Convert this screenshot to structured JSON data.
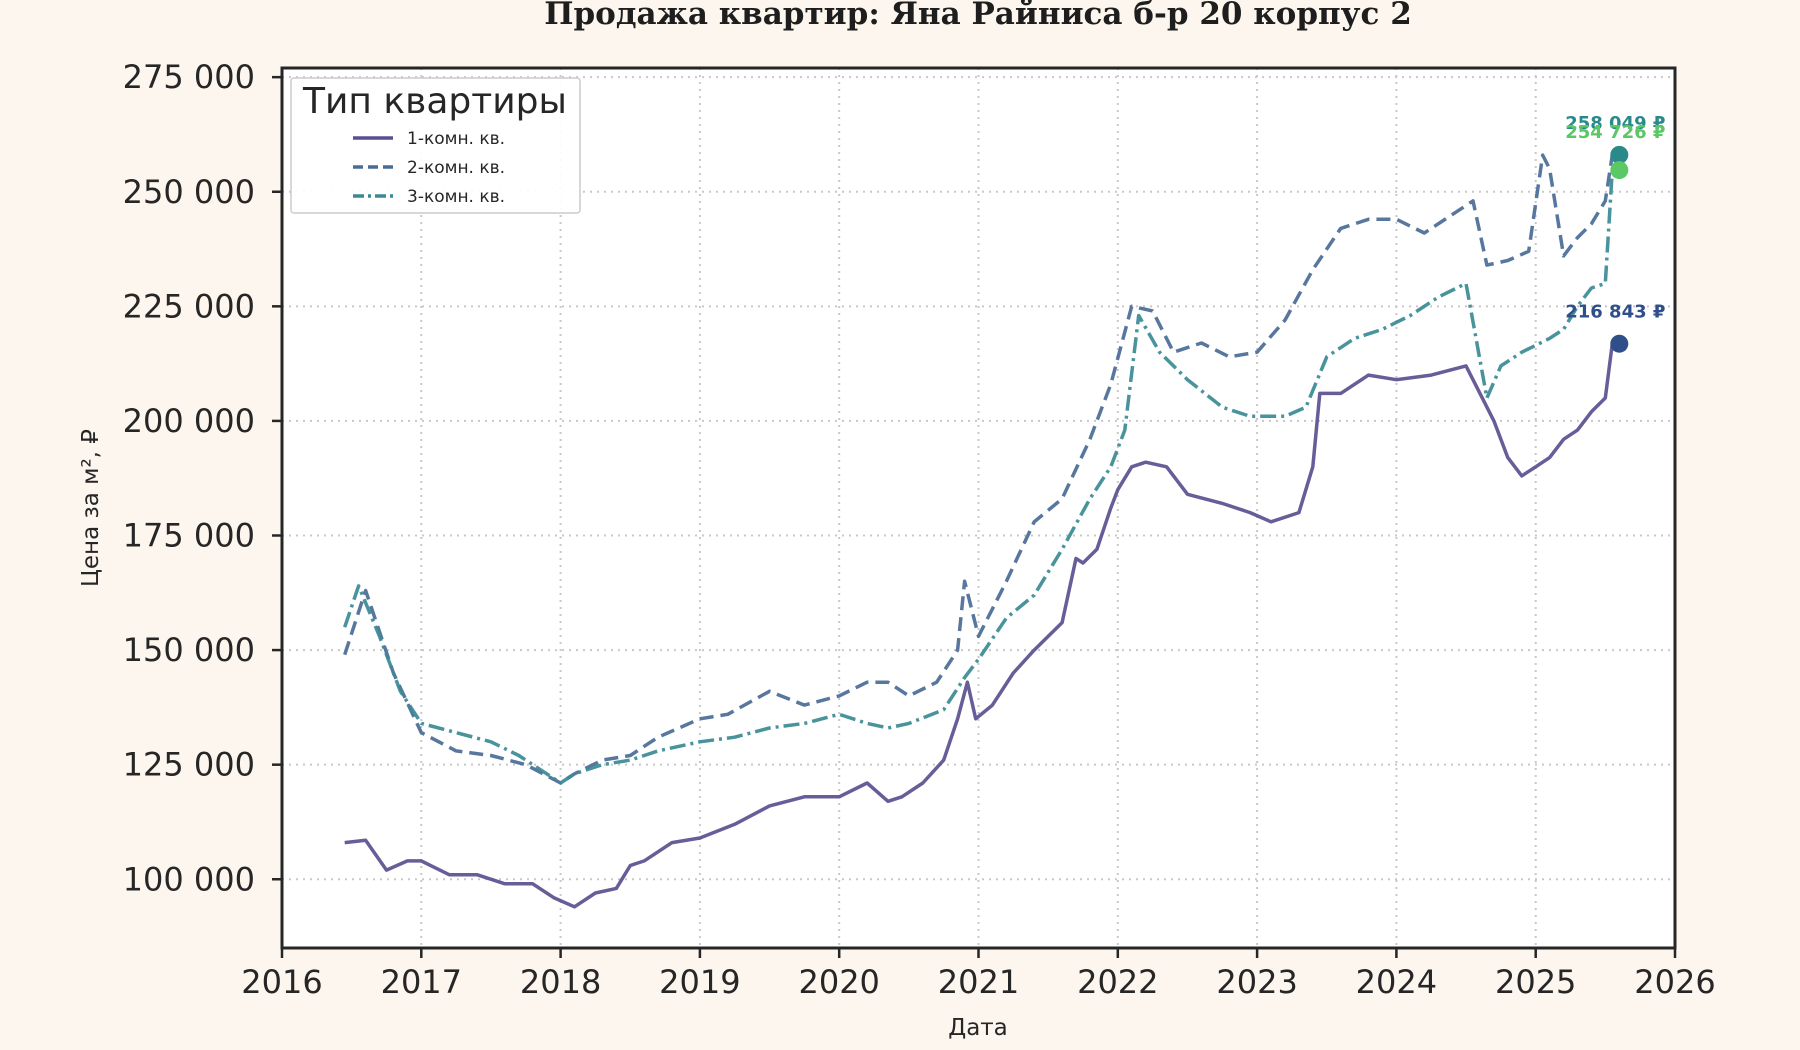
{
  "chart_data": {
    "type": "line",
    "title": "Продажа квартир: Яна Райниса б-р 20 корпус 2",
    "xlabel": "Дата",
    "ylabel": "Цена за м², ₽",
    "xlim": [
      2016,
      2026
    ],
    "ylim": [
      85000,
      277000
    ],
    "x_ticks": [
      "2016",
      "2017",
      "2018",
      "2019",
      "2020",
      "2021",
      "2022",
      "2023",
      "2024",
      "2025",
      "2026"
    ],
    "y_ticks": [
      "100 000",
      "125 000",
      "150 000",
      "175 000",
      "200 000",
      "225 000",
      "250 000",
      "275 000"
    ],
    "grid": true,
    "legend": {
      "title": "Тип квартиры",
      "placement": "top-left"
    },
    "series": [
      {
        "name": "1-комн. кв.",
        "color": "#5b4f8f",
        "style": "solid",
        "x": [
          2016.45,
          2016.6,
          2016.75,
          2016.9,
          2017.0,
          2017.2,
          2017.4,
          2017.6,
          2017.8,
          2017.95,
          2018.1,
          2018.25,
          2018.4,
          2018.5,
          2018.6,
          2018.8,
          2019.0,
          2019.25,
          2019.5,
          2019.75,
          2020.0,
          2020.2,
          2020.35,
          2020.45,
          2020.6,
          2020.75,
          2020.85,
          2020.92,
          2020.98,
          2021.1,
          2021.25,
          2021.4,
          2021.6,
          2021.7,
          2021.75,
          2021.85,
          2021.95,
          2022.0,
          2022.1,
          2022.2,
          2022.35,
          2022.5,
          2022.75,
          2022.95,
          2023.1,
          2023.3,
          2023.4,
          2023.45,
          2023.6,
          2023.8,
          2024.0,
          2024.25,
          2024.5,
          2024.7,
          2024.8,
          2024.9,
          2025.0,
          2025.1,
          2025.2,
          2025.3,
          2025.4,
          2025.5,
          2025.55
        ],
        "y": [
          108000,
          108500,
          102000,
          104000,
          104000,
          101000,
          101000,
          99000,
          99000,
          96000,
          94000,
          97000,
          98000,
          103000,
          104000,
          108000,
          109000,
          112000,
          116000,
          118000,
          118000,
          121000,
          117000,
          118000,
          121000,
          126000,
          135000,
          143000,
          135000,
          138000,
          145000,
          150000,
          156000,
          170000,
          169000,
          172000,
          181000,
          185000,
          190000,
          191000,
          190000,
          184000,
          182000,
          180000,
          178000,
          180000,
          190000,
          206000,
          206000,
          210000,
          209000,
          210000,
          212000,
          200000,
          192000,
          188000,
          190000,
          192000,
          196000,
          198000,
          202000,
          205000,
          216843
        ]
      },
      {
        "name": "2-комн. кв.",
        "color": "#4a6b96",
        "style": "dashed",
        "x": [
          2016.45,
          2016.6,
          2016.8,
          2017.0,
          2017.25,
          2017.5,
          2017.75,
          2018.0,
          2018.1,
          2018.3,
          2018.5,
          2018.7,
          2019.0,
          2019.2,
          2019.5,
          2019.75,
          2020.0,
          2020.2,
          2020.35,
          2020.5,
          2020.7,
          2020.85,
          2020.9,
          2021.0,
          2021.2,
          2021.4,
          2021.6,
          2021.8,
          2021.95,
          2022.1,
          2022.25,
          2022.4,
          2022.6,
          2022.8,
          2023.0,
          2023.2,
          2023.4,
          2023.6,
          2023.8,
          2024.0,
          2024.2,
          2024.4,
          2024.55,
          2024.65,
          2024.8,
          2024.95,
          2025.05,
          2025.1,
          2025.2,
          2025.3,
          2025.4,
          2025.5,
          2025.55
        ],
        "y": [
          149000,
          163000,
          145000,
          132000,
          128000,
          127000,
          125000,
          121000,
          123000,
          126000,
          127000,
          131000,
          135000,
          136000,
          141000,
          138000,
          140000,
          143000,
          143000,
          140000,
          143000,
          150000,
          165000,
          153000,
          165000,
          178000,
          183000,
          196000,
          208000,
          225000,
          224000,
          215000,
          217000,
          214000,
          215000,
          222000,
          233000,
          242000,
          244000,
          244000,
          241000,
          245000,
          248000,
          234000,
          235000,
          237000,
          258000,
          255000,
          236000,
          240000,
          243000,
          248000,
          258049
        ]
      },
      {
        "name": "3-комн. кв.",
        "color": "#3a8a94",
        "style": "dashdot",
        "x": [
          2016.45,
          2016.55,
          2016.7,
          2016.85,
          2017.0,
          2017.25,
          2017.5,
          2017.7,
          2017.9,
          2018.0,
          2018.1,
          2018.3,
          2018.5,
          2018.7,
          2019.0,
          2019.25,
          2019.5,
          2019.75,
          2020.0,
          2020.2,
          2020.35,
          2020.5,
          2020.75,
          2020.9,
          2021.0,
          2021.2,
          2021.4,
          2021.6,
          2021.8,
          2021.95,
          2022.05,
          2022.15,
          2022.3,
          2022.5,
          2022.75,
          2022.95,
          2023.2,
          2023.35,
          2023.5,
          2023.7,
          2023.9,
          2024.1,
          2024.3,
          2024.5,
          2024.65,
          2024.75,
          2024.9,
          2025.1,
          2025.2,
          2025.3,
          2025.4,
          2025.5,
          2025.55
        ],
        "y": [
          155000,
          164000,
          153000,
          141000,
          134000,
          132000,
          130000,
          127000,
          123000,
          121000,
          123000,
          125000,
          126000,
          128000,
          130000,
          131000,
          133000,
          134000,
          136000,
          134000,
          133000,
          134000,
          137000,
          144000,
          148000,
          157000,
          162000,
          172000,
          183000,
          190000,
          198000,
          223000,
          215000,
          209000,
          203000,
          201000,
          201000,
          203000,
          214000,
          218000,
          220000,
          223000,
          227000,
          230000,
          205000,
          212000,
          215000,
          218000,
          220000,
          225000,
          229000,
          230000,
          254726
        ]
      }
    ],
    "end_markers": [
      {
        "series": "1-комн. кв.",
        "label": "216 843 ₽",
        "value": 216843,
        "color": "#2f4f8a"
      },
      {
        "series": "2-комн. кв.",
        "label": "258 049 ₽",
        "value": 258049,
        "color": "#2a8a8a"
      },
      {
        "series": "3-комн. кв.",
        "label": "254 726 ₽",
        "value": 254726,
        "color": "#5cc865"
      }
    ]
  }
}
